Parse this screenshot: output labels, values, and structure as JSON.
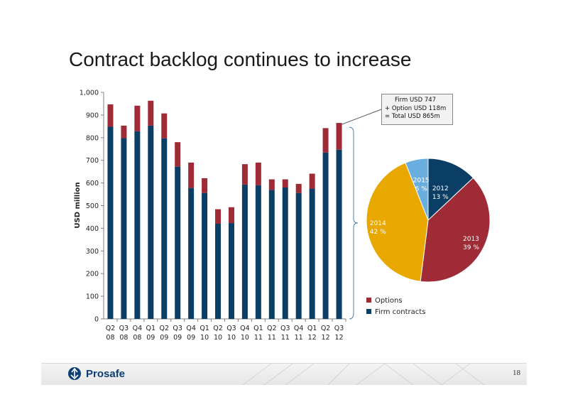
{
  "slide": {
    "title": "Contract backlog continues to increase",
    "page_number": "18",
    "brand_name": "Prosafe",
    "brand_icon": "prosafe-logo-icon"
  },
  "callout": {
    "line1": "Firm USD 747",
    "line2": "+ Option USD 118m",
    "line3": "= Total USD 865m"
  },
  "colors": {
    "firm": "#0b3e64",
    "options": "#9e2b35",
    "pie_2012": "#0b3e64",
    "pie_2013": "#9e2b35",
    "pie_2014": "#e8a800",
    "pie_2015": "#6aaee0"
  },
  "chart_data": [
    {
      "type": "bar",
      "stacked": true,
      "ylabel": "USD million",
      "ylim": [
        0,
        1000
      ],
      "yticks": [
        "0",
        "100",
        "200",
        "300",
        "400",
        "500",
        "600",
        "700",
        "800",
        "900",
        "1,000"
      ],
      "categories": [
        [
          "Q2",
          "08"
        ],
        [
          "Q3",
          "08"
        ],
        [
          "Q4",
          "08"
        ],
        [
          "Q1",
          "09"
        ],
        [
          "Q2",
          "09"
        ],
        [
          "Q3",
          "09"
        ],
        [
          "Q4",
          "09"
        ],
        [
          "Q1",
          "10"
        ],
        [
          "Q2",
          "10"
        ],
        [
          "Q3",
          "10"
        ],
        [
          "Q4",
          "10"
        ],
        [
          "Q1",
          "11"
        ],
        [
          "Q2",
          "11"
        ],
        [
          "Q3",
          "11"
        ],
        [
          "Q4",
          "11"
        ],
        [
          "Q1",
          "12"
        ],
        [
          "Q2",
          "12"
        ],
        [
          "Q3",
          "12"
        ]
      ],
      "series": [
        {
          "name": "Firm contracts",
          "values": [
            848,
            798,
            828,
            853,
            797,
            672,
            578,
            556,
            420,
            423,
            593,
            590,
            570,
            580,
            556,
            575,
            734,
            747
          ]
        },
        {
          "name": "Options",
          "values": [
            99,
            55,
            113,
            110,
            110,
            108,
            112,
            65,
            64,
            70,
            90,
            100,
            46,
            36,
            40,
            66,
            108,
            118
          ]
        }
      ],
      "legend": [
        "Options",
        "Firm contracts"
      ],
      "legend_position": "bottom-right"
    },
    {
      "type": "pie",
      "slices": [
        {
          "label": "2012",
          "percent_label": "13 %",
          "value": 13
        },
        {
          "label": "2013",
          "percent_label": "39 %",
          "value": 39
        },
        {
          "label": "2014",
          "percent_label": "42 %",
          "value": 42
        },
        {
          "label": "2015",
          "percent_label": "6 %",
          "value": 6
        }
      ]
    }
  ]
}
